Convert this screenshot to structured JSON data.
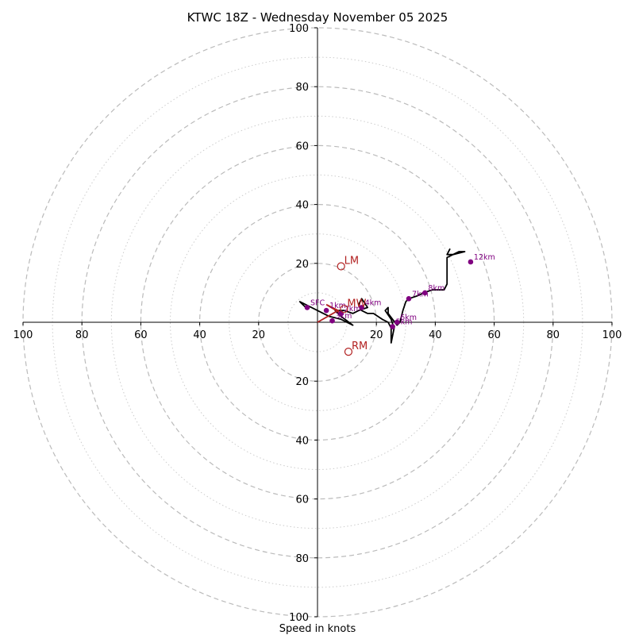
{
  "chart_data": {
    "type": "hodograph",
    "title": "KTWC 18Z - Wednesday November 05 2025",
    "xlabel": "Speed in knots",
    "range": [
      -100,
      100
    ],
    "major_rings": [
      20,
      40,
      60,
      80,
      100
    ],
    "minor_rings": [
      10,
      30,
      50,
      70,
      90
    ],
    "x_tick_labels": [
      "100",
      "80",
      "60",
      "40",
      "20",
      "20",
      "40",
      "60",
      "80",
      "100"
    ],
    "y_tick_labels": [
      "100",
      "80",
      "60",
      "40",
      "20",
      "20",
      "40",
      "60",
      "80",
      "100"
    ],
    "x_tick_values": [
      -100,
      -80,
      -60,
      -40,
      -20,
      20,
      40,
      60,
      80,
      100
    ],
    "y_tick_values": [
      100,
      80,
      60,
      40,
      20,
      -20,
      -40,
      -60,
      -80,
      -100
    ],
    "hodograph_trace": [
      [
        -4,
        5
      ],
      [
        -6,
        7
      ],
      [
        0,
        4
      ],
      [
        2,
        3
      ],
      [
        4,
        2
      ],
      [
        6,
        1.5
      ],
      [
        8,
        1
      ],
      [
        12,
        -1
      ],
      [
        8,
        2
      ],
      [
        6,
        4
      ],
      [
        9,
        4
      ],
      [
        12,
        3
      ],
      [
        14,
        4
      ],
      [
        17,
        5
      ],
      [
        15,
        8
      ],
      [
        14,
        6
      ],
      [
        15,
        4
      ],
      [
        17,
        3
      ],
      [
        19,
        3
      ],
      [
        22,
        1
      ],
      [
        24,
        0
      ],
      [
        25,
        -2
      ],
      [
        25,
        -7
      ],
      [
        26,
        -2
      ],
      [
        25,
        1
      ],
      [
        23,
        4
      ],
      [
        24,
        5
      ],
      [
        24,
        3
      ],
      [
        27,
        -1
      ],
      [
        28,
        0
      ],
      [
        29,
        4
      ],
      [
        30,
        7
      ],
      [
        31,
        8
      ],
      [
        34,
        9
      ],
      [
        36,
        10
      ],
      [
        39,
        11
      ],
      [
        43,
        11
      ],
      [
        44,
        13
      ],
      [
        44,
        15
      ],
      [
        44,
        19
      ],
      [
        44,
        22
      ],
      [
        46,
        23
      ],
      [
        48,
        24
      ],
      [
        50,
        24
      ],
      [
        46,
        23
      ],
      [
        44,
        23
      ],
      [
        45,
        25
      ]
    ],
    "height_markers": [
      {
        "label": "SFC",
        "u": -3.5,
        "v": 5
      },
      {
        "label": "1km",
        "u": 3,
        "v": 4
      },
      {
        "label": "2km",
        "u": 8,
        "v": 3
      },
      {
        "label": "3km",
        "u": 5,
        "v": 0.5
      },
      {
        "label": "4km",
        "u": 15,
        "v": 5
      },
      {
        "label": "5km",
        "u": 25.5,
        "v": -1.5
      },
      {
        "label": "6km",
        "u": 27,
        "v": 0
      },
      {
        "label": "7km",
        "u": 31,
        "v": 8
      },
      {
        "label": "8km",
        "u": 36.5,
        "v": 10
      },
      {
        "label": "12km",
        "u": 52,
        "v": 20.5
      }
    ],
    "bunkers_vector": [
      [
        0,
        0
      ],
      [
        7,
        4
      ],
      [
        3,
        6
      ],
      [
        8,
        3
      ]
    ],
    "storm_motions": [
      {
        "label": "LM",
        "u": 8,
        "v": 19
      },
      {
        "label": "MW",
        "u": 9,
        "v": 4.5
      },
      {
        "label": "RM",
        "u": 10.5,
        "v": -10
      }
    ],
    "colors": {
      "trace": "#000000",
      "markers": "#800080",
      "storm_motion": "#b22222",
      "ring": "#bbbbbb",
      "axis": "#000000"
    }
  }
}
